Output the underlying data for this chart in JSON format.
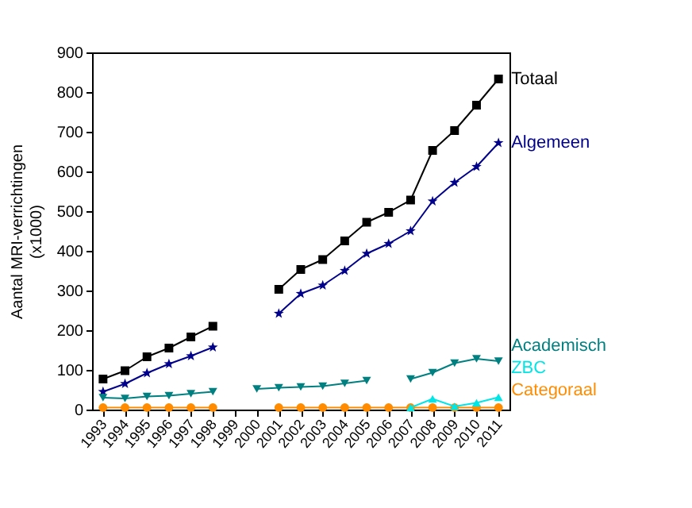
{
  "chart_data": {
    "type": "line",
    "ylabel": "Aantal MRI-verrichtingen\n(x1000)",
    "categories": [
      "1993",
      "1994",
      "1995",
      "1996",
      "1997",
      "1998",
      "1999",
      "2000",
      "2001",
      "2002",
      "2003",
      "2004",
      "2005",
      "2006",
      "2007",
      "2008",
      "2009",
      "2010",
      "2011"
    ],
    "series": [
      {
        "name": "Totaal",
        "color": "#000000",
        "marker": "square",
        "values": [
          77,
          98,
          133,
          155,
          183,
          210,
          null,
          null,
          303,
          353,
          378,
          425,
          472,
          497,
          528,
          653,
          703,
          767,
          833
        ]
      },
      {
        "name": "Algemeen",
        "color": "#00008b",
        "marker": "star",
        "values": [
          45,
          65,
          92,
          115,
          135,
          157,
          null,
          null,
          242,
          292,
          313,
          350,
          393,
          418,
          450,
          525,
          572,
          612,
          672
        ]
      },
      {
        "name": "Academisch",
        "color": "#008080",
        "marker": "triangle-down",
        "values": [
          30,
          28,
          33,
          35,
          40,
          45,
          null,
          52,
          55,
          57,
          59,
          66,
          73,
          null,
          77,
          93,
          117,
          128,
          122
        ]
      },
      {
        "name": "Categoraal",
        "color": "#ff8c00",
        "marker": "circle",
        "values": [
          5,
          5,
          5,
          5,
          5,
          5,
          null,
          null,
          5,
          5,
          5,
          5,
          5,
          5,
          5,
          5,
          5,
          5,
          5
        ]
      },
      {
        "name": "ZBC",
        "color": "#00e5e5",
        "marker": "triangle",
        "values": [
          null,
          null,
          null,
          null,
          null,
          null,
          null,
          null,
          null,
          null,
          null,
          null,
          null,
          null,
          5,
          27,
          8,
          17,
          31
        ]
      }
    ],
    "ylim": [
      0,
      900
    ],
    "yticks": [
      0,
      100,
      200,
      300,
      400,
      500,
      600,
      700,
      800,
      900
    ],
    "grid": false,
    "legend": false,
    "line_style": "solid"
  }
}
